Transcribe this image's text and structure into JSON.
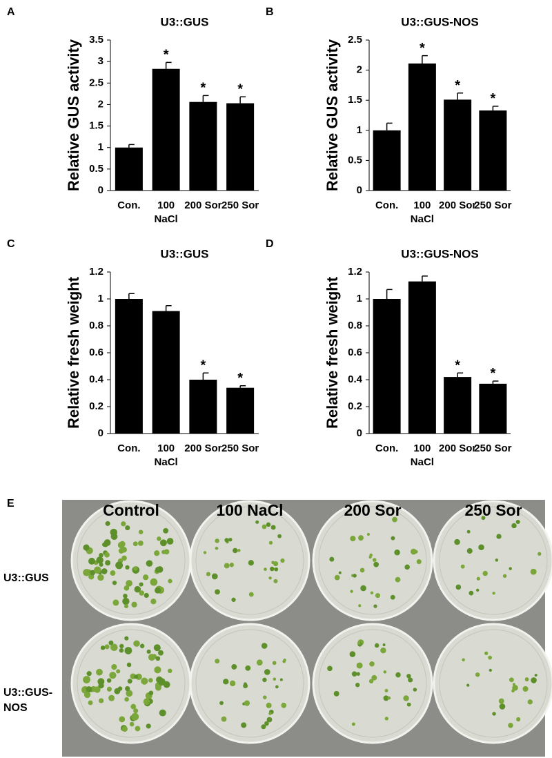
{
  "chart_data": [
    {
      "type": "bar",
      "panel": "A",
      "title": "U3::GUS",
      "ylabel": "Relative GUS activity",
      "categories": [
        "Con.",
        "100 NaCl",
        "200 Sor",
        "250 Sor"
      ],
      "values": [
        1.0,
        2.83,
        2.06,
        2.03
      ],
      "errors": [
        0.07,
        0.15,
        0.15,
        0.15
      ],
      "significance": [
        null,
        "*",
        "*",
        "*"
      ],
      "color": "#000000",
      "ylim": [
        0,
        3.5
      ],
      "yticks": [
        0,
        0.5,
        1,
        1.5,
        2,
        2.5,
        3,
        3.5
      ],
      "grid": false
    },
    {
      "type": "bar",
      "panel": "B",
      "title": "U3::GUS-NOS",
      "ylabel": "Relative GUS activity",
      "categories": [
        "Con.",
        "100 NaCl",
        "200 Sor",
        "250 Sor"
      ],
      "values": [
        1.0,
        2.11,
        1.51,
        1.33
      ],
      "errors": [
        0.12,
        0.13,
        0.11,
        0.07
      ],
      "significance": [
        null,
        "*",
        "*",
        "*"
      ],
      "color": "#000000",
      "ylim": [
        0,
        2.5
      ],
      "yticks": [
        0,
        0.5,
        1,
        1.5,
        2,
        2.5
      ],
      "grid": false
    },
    {
      "type": "bar",
      "panel": "C",
      "title": "U3::GUS",
      "ylabel": "Relative fresh weight",
      "categories": [
        "Con.",
        "100 NaCl",
        "200 Sor",
        "250 Sor"
      ],
      "values": [
        1.0,
        0.91,
        0.4,
        0.34
      ],
      "errors": [
        0.04,
        0.04,
        0.05,
        0.015
      ],
      "significance": [
        null,
        null,
        "*",
        "*"
      ],
      "color": "#000000",
      "ylim": [
        0,
        1.2
      ],
      "yticks": [
        0,
        0.2,
        0.4,
        0.6,
        0.8,
        1,
        1.2
      ],
      "grid": false
    },
    {
      "type": "bar",
      "panel": "D",
      "title": "U3::GUS-NOS",
      "ylabel": "Relative fresh weight",
      "categories": [
        "Con.",
        "100 NaCl",
        "200 Sor",
        "250 Sor"
      ],
      "values": [
        1.0,
        1.13,
        0.42,
        0.37
      ],
      "errors": [
        0.07,
        0.04,
        0.03,
        0.02
      ],
      "significance": [
        null,
        null,
        "*",
        "*"
      ],
      "color": "#000000",
      "ylim": [
        0,
        1.2
      ],
      "yticks": [
        0,
        0.2,
        0.4,
        0.6,
        0.8,
        1,
        1.2
      ],
      "grid": false
    }
  ],
  "photo": {
    "panel": "E",
    "columns": [
      "Control",
      "100 NaCl",
      "200 Sor",
      "250 Sor"
    ],
    "rows": [
      "U3::GUS",
      "U3::GUS-NOS"
    ]
  }
}
